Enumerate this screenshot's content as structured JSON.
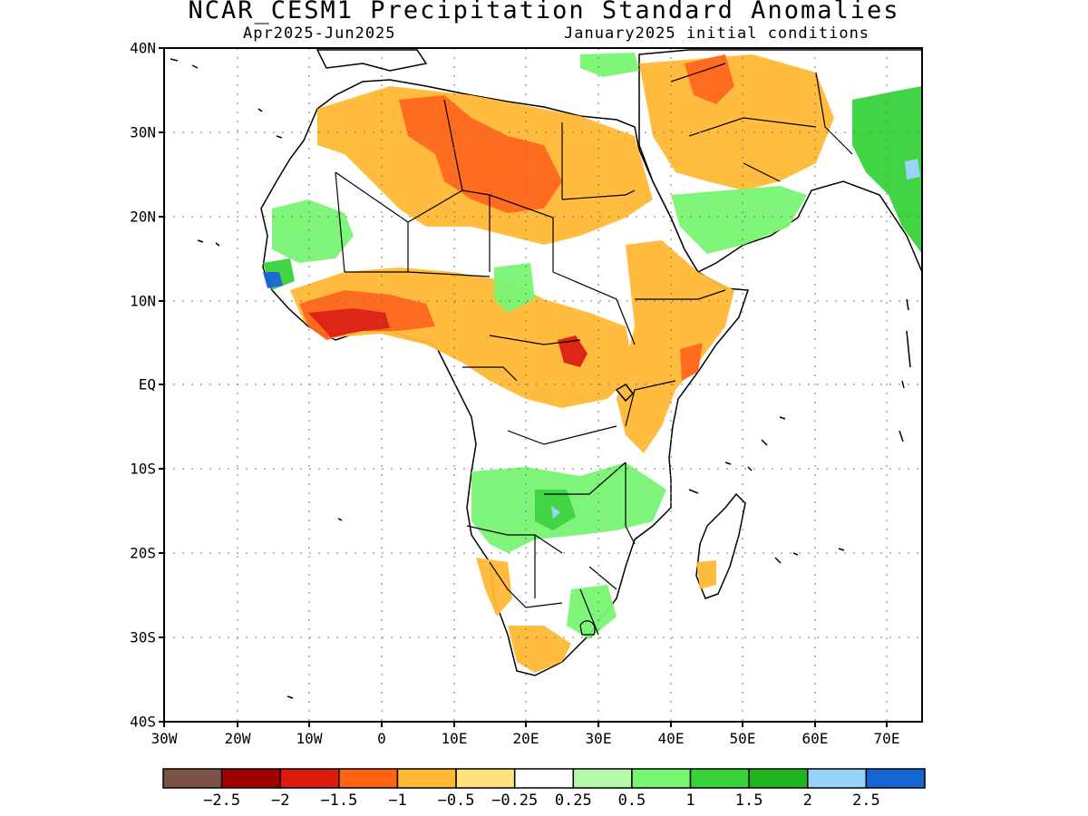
{
  "title": "NCAR_CESM1 Precipitation Standard Anomalies",
  "subtitle_left": "Apr2025-Jun2025",
  "subtitle_right": "January2025 initial conditions",
  "lat_labels": [
    "40N",
    "30N",
    "20N",
    "10N",
    "EQ",
    "10S",
    "20S",
    "30S",
    "40S"
  ],
  "lon_labels": [
    "30W",
    "20W",
    "10W",
    "0",
    "10E",
    "20E",
    "30E",
    "40E",
    "50E",
    "60E",
    "70E"
  ],
  "colorbar": {
    "colors": [
      "#7b5245",
      "#a00000",
      "#dd1b0c",
      "#ff6414",
      "#ffb935",
      "#ffe27d",
      "#ffffff",
      "#b4faaa",
      "#78f573",
      "#37d23c",
      "#1eb41e",
      "#96d2fa",
      "#1464d2"
    ],
    "labels": [
      "-2.5",
      "-2",
      "-1.5",
      "-1",
      "-0.5",
      "-0.25",
      "0.25",
      "0.5",
      "1",
      "1.5",
      "2",
      "2.5"
    ]
  }
}
